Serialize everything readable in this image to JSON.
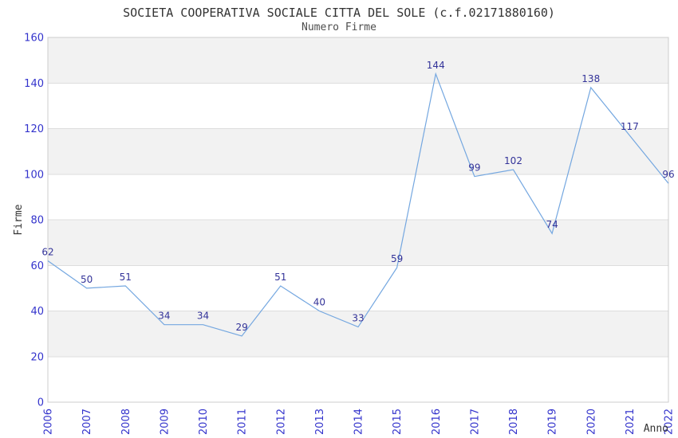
{
  "chart_data": {
    "type": "line",
    "title": "SOCIETA COOPERATIVA SOCIALE CITTA DEL SOLE (c.f.02171880160)",
    "subtitle": "Numero Firme",
    "xlabel": "Anno",
    "ylabel": "Firme",
    "categories": [
      "2006",
      "2007",
      "2008",
      "2009",
      "2010",
      "2011",
      "2012",
      "2013",
      "2014",
      "2015",
      "2016",
      "2017",
      "2018",
      "2019",
      "2020",
      "2021",
      "2022"
    ],
    "values": [
      62,
      50,
      51,
      34,
      34,
      29,
      51,
      40,
      33,
      59,
      144,
      99,
      102,
      74,
      138,
      117,
      96
    ],
    "ylim": [
      0,
      160
    ],
    "ytick_step": 20,
    "yticks": [
      0,
      20,
      40,
      60,
      80,
      100,
      120,
      140,
      160
    ],
    "grid": true,
    "banded_background": true,
    "legend_position": "none",
    "data_labels_shown": true,
    "colors": {
      "line": "#74A7E0",
      "data_label": "#333399",
      "tick_label": "#3333CC",
      "title": "#333333",
      "subtitle": "#4d4d4d",
      "axis_title": "#333333",
      "band_gray": "#f2f2f2",
      "band_white": "#ffffff",
      "grid_line": "#dddddd",
      "plot_border": "#cccccc",
      "background": "#ffffff"
    }
  }
}
